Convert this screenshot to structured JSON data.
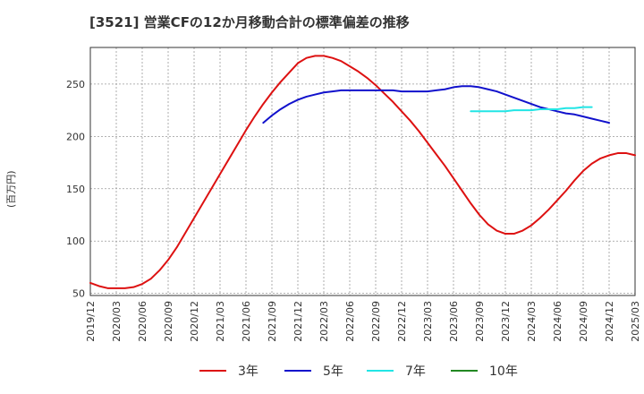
{
  "chart_data": {
    "type": "line",
    "title": "[3521]  営業CFの12か月移動合計の標準偏差の推移",
    "ylabel": "(百万円)",
    "xlabel": "",
    "ylim": [
      48,
      285
    ],
    "yticks": [
      50,
      100,
      150,
      200,
      250
    ],
    "xticks": [
      "2019/12",
      "2020/03",
      "2020/06",
      "2020/09",
      "2020/12",
      "2021/03",
      "2021/06",
      "2021/09",
      "2021/12",
      "2022/03",
      "2022/06",
      "2022/09",
      "2022/12",
      "2023/03",
      "2023/06",
      "2023/09",
      "2023/12",
      "2024/03",
      "2024/06",
      "2024/09",
      "2024/12",
      "2025/03"
    ],
    "grid": true,
    "legend_position": "bottom",
    "series": [
      {
        "name": "3年",
        "color": "#dd1111",
        "start": "2019/12",
        "values": [
          60,
          57,
          55,
          55,
          55,
          56,
          59,
          64,
          72,
          82,
          94,
          108,
          122,
          136,
          150,
          164,
          178,
          192,
          206,
          219,
          231,
          242,
          252,
          261,
          270,
          275,
          277,
          277,
          275,
          272,
          267,
          262,
          256,
          249,
          241,
          233,
          224,
          215,
          205,
          194,
          183,
          172,
          160,
          148,
          136,
          125,
          116,
          110,
          107,
          107,
          110,
          115,
          122,
          130,
          139,
          148,
          158,
          167,
          174,
          179,
          182,
          184,
          184,
          182
        ]
      },
      {
        "name": "5年",
        "color": "#1111cc",
        "start": "2021/08",
        "values": [
          213,
          220,
          226,
          231,
          235,
          238,
          240,
          242,
          243,
          244,
          244,
          244,
          244,
          244,
          244,
          244,
          243,
          243,
          243,
          243,
          244,
          245,
          247,
          248,
          248,
          247,
          245,
          243,
          240,
          237,
          234,
          231,
          228,
          226,
          224,
          222,
          221,
          219,
          217,
          215,
          213
        ]
      },
      {
        "name": "7年",
        "color": "#22e5e5",
        "start": "2023/08",
        "values": [
          224,
          224,
          224,
          224,
          224,
          225,
          225,
          225,
          226,
          226,
          226,
          227,
          227,
          228,
          228
        ]
      },
      {
        "name": "10年",
        "color": "#228822",
        "start": "2019/12",
        "values": []
      }
    ]
  }
}
